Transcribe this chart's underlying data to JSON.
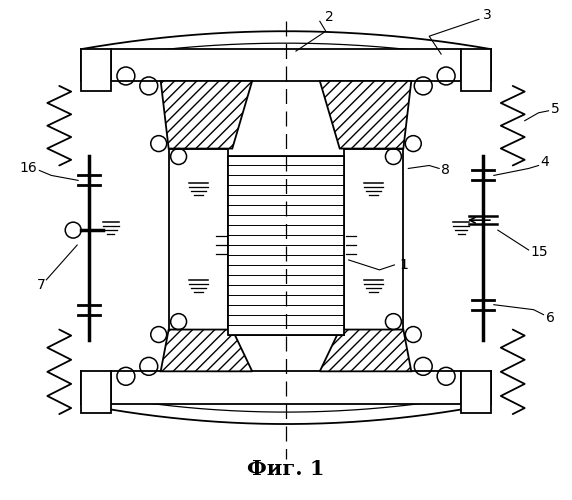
{
  "title": "Фиг. 1",
  "title_fontsize": 15,
  "title_fontweight": "bold",
  "bg_color": "#ffffff",
  "line_color": "#000000"
}
